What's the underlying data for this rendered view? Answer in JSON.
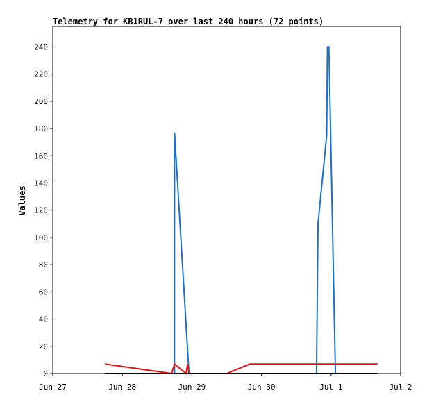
{
  "chart_data": {
    "type": "line",
    "title": "Telemetry for KB1RUL-7 over last 240 hours (72 points)",
    "xlabel": "",
    "ylabel": "Values",
    "ylim": [
      0,
      255
    ],
    "xlim": [
      "Jun 27",
      "Jul 2"
    ],
    "x_ticks": [
      "Jun 27",
      "Jun 28",
      "Jun 29",
      "Jun 30",
      "Jul 1",
      "Jul 2"
    ],
    "y_ticks": [
      0,
      20,
      40,
      60,
      80,
      100,
      120,
      140,
      160,
      180,
      200,
      220,
      240
    ],
    "grid": false,
    "series": [
      {
        "color": "#1f6fbf",
        "points": [
          {
            "x": "2024-06-28 18:00",
            "y": 0
          },
          {
            "x": "2024-06-28 18:01",
            "y": 177
          },
          {
            "x": "2024-06-28 23:00",
            "y": 0
          },
          {
            "x": "2024-06-30 19:00",
            "y": 0
          },
          {
            "x": "2024-06-30 19:30",
            "y": 110
          },
          {
            "x": "2024-06-30 22:30",
            "y": 175
          },
          {
            "x": "2024-06-30 22:45",
            "y": 240
          },
          {
            "x": "2024-06-30 23:15",
            "y": 240
          },
          {
            "x": "2024-07-01 01:30",
            "y": 0
          }
        ]
      },
      {
        "color": "#e01010",
        "points": [
          {
            "x": "2024-06-27 18:00",
            "y": 7
          },
          {
            "x": "2024-06-28 17:00",
            "y": 0
          },
          {
            "x": "2024-06-28 18:00",
            "y": 7
          },
          {
            "x": "2024-06-28 22:00",
            "y": 0
          },
          {
            "x": "2024-06-28 22:30",
            "y": 7
          },
          {
            "x": "2024-06-28 23:00",
            "y": 0
          },
          {
            "x": "2024-06-29 12:00",
            "y": 0
          },
          {
            "x": "2024-06-29 20:00",
            "y": 7
          },
          {
            "x": "2024-07-01 16:00",
            "y": 7
          }
        ]
      },
      {
        "color": "#000000",
        "points": [
          {
            "x": "2024-06-27 18:00",
            "y": 0
          },
          {
            "x": "2024-07-01 16:00",
            "y": 0
          }
        ]
      }
    ]
  }
}
